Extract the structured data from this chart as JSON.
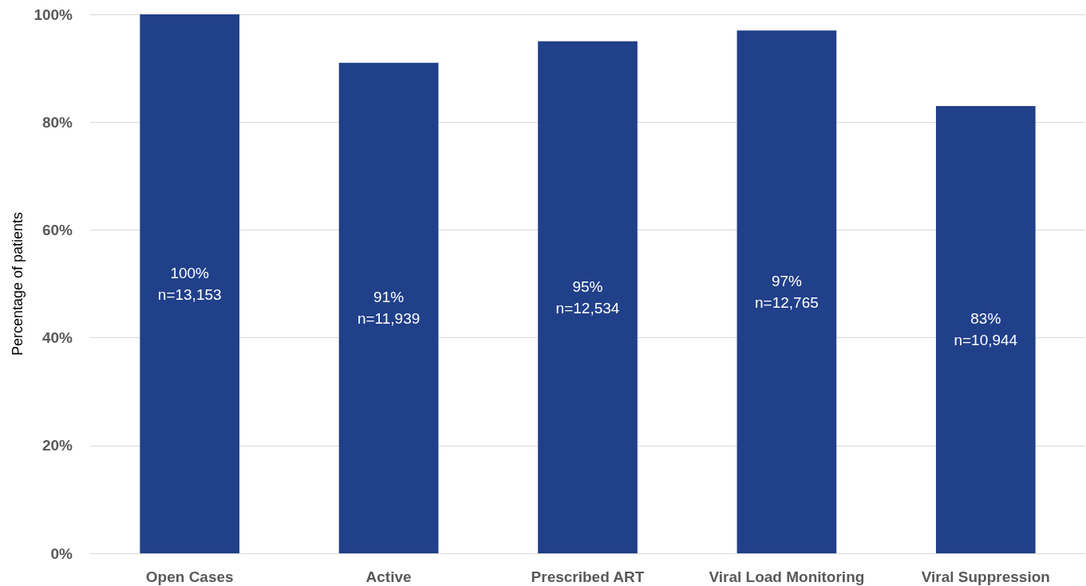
{
  "chart_data": {
    "type": "bar",
    "ylabel": "Percentage of patients",
    "categories": [
      "Open Cases",
      "Active",
      "Prescribed ART",
      "Viral Load Monitoring",
      "Viral Suppression"
    ],
    "values": [
      100,
      91,
      95,
      97,
      83
    ],
    "color": "#21408a",
    "value_labels": [
      "100%\nn=13,153",
      "91%\nn=11,939",
      "95%\nn=12,534",
      "97%\nn=12,765",
      "83%\nn=10,944"
    ],
    "ylim": [
      0,
      100
    ],
    "yticks": [
      {
        "value": 0,
        "label": "0%"
      },
      {
        "value": 20,
        "label": "20%"
      },
      {
        "value": 40,
        "label": "40%"
      },
      {
        "value": 60,
        "label": "60%"
      },
      {
        "value": 80,
        "label": "80%"
      },
      {
        "value": 100,
        "label": "100%"
      }
    ],
    "grid": "y"
  }
}
